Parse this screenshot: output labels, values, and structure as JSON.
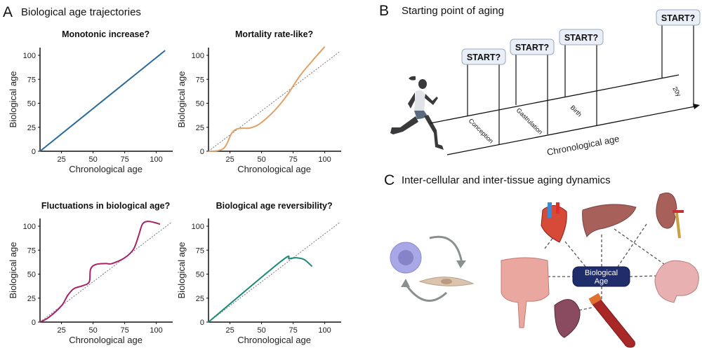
{
  "panels": {
    "a": {
      "letter": "A",
      "title": "Biological age trajectories"
    },
    "b": {
      "letter": "B",
      "title": "Starting point of aging",
      "start_label": "START?",
      "stages": [
        "Conception",
        "Gastrulation",
        "Birth",
        "20y"
      ],
      "axis_label": "Chronological age"
    },
    "c": {
      "letter": "C",
      "title": "Inter-cellular and inter-tissue aging dynamics",
      "center_line1": "Biological",
      "center_line2": "Age",
      "organs": [
        "heart",
        "liver",
        "kidney",
        "intestine",
        "brain",
        "spleen",
        "blood-tube"
      ],
      "center_color": "#1f2d6b"
    }
  },
  "chart_data": [
    {
      "type": "line",
      "title": "Monotonic increase?",
      "xlabel": "Chronological age",
      "ylabel": "Biological age",
      "xticks": [
        "25",
        "50",
        "75",
        "100"
      ],
      "yticks": [
        "0",
        "25",
        "50",
        "75",
        "100"
      ],
      "xlim": [
        8,
        113
      ],
      "ylim": [
        0,
        108
      ],
      "grid": false,
      "color": "#2a6a9a",
      "reference_line": false,
      "points": [
        [
          8,
          0
        ],
        [
          107,
          105
        ]
      ]
    },
    {
      "type": "line",
      "title": "Mortality rate-like?",
      "xlabel": "Chronological age",
      "ylabel": "Biological age",
      "xticks": [
        "25",
        "50",
        "75",
        "100"
      ],
      "yticks": [
        "0",
        "25",
        "50",
        "75",
        "100"
      ],
      "xlim": [
        8,
        113
      ],
      "ylim": [
        0,
        108
      ],
      "grid": false,
      "color": "#e0a068",
      "reference_line": true,
      "points": [
        [
          8,
          0
        ],
        [
          15,
          0.5
        ],
        [
          20,
          3
        ],
        [
          23,
          9
        ],
        [
          26,
          18
        ],
        [
          30,
          23
        ],
        [
          35,
          24
        ],
        [
          40,
          24
        ],
        [
          45,
          26
        ],
        [
          50,
          30
        ],
        [
          60,
          42
        ],
        [
          70,
          58
        ],
        [
          80,
          78
        ],
        [
          90,
          94
        ],
        [
          100,
          109
        ]
      ]
    },
    {
      "type": "line",
      "title": "Fluctuations in biological age?",
      "xlabel": "Chronological age",
      "ylabel": "Biological age",
      "xticks": [
        "25",
        "50",
        "75",
        "100"
      ],
      "yticks": [
        "0",
        "25",
        "50",
        "75",
        "100"
      ],
      "xlim": [
        8,
        113
      ],
      "ylim": [
        0,
        108
      ],
      "grid": false,
      "color": "#a8226a",
      "reference_line": true,
      "points": [
        [
          8,
          0
        ],
        [
          15,
          5
        ],
        [
          25,
          17
        ],
        [
          30,
          28
        ],
        [
          35,
          35
        ],
        [
          42,
          38
        ],
        [
          47,
          42
        ],
        [
          48,
          55
        ],
        [
          52,
          60
        ],
        [
          60,
          61
        ],
        [
          65,
          61
        ],
        [
          75,
          67
        ],
        [
          82,
          76
        ],
        [
          86,
          90
        ],
        [
          89,
          102
        ],
        [
          93,
          105
        ],
        [
          98,
          104
        ],
        [
          103,
          102
        ]
      ]
    },
    {
      "type": "line",
      "title": "Biological age reversibility?",
      "xlabel": "Chronological age",
      "ylabel": "Biological age",
      "xticks": [
        "25",
        "50",
        "75",
        "100"
      ],
      "yticks": [
        "0",
        "25",
        "50",
        "75",
        "100"
      ],
      "xlim": [
        8,
        113
      ],
      "ylim": [
        0,
        108
      ],
      "grid": false,
      "color": "#1e8a78",
      "reference_line": true,
      "points": [
        [
          8,
          0
        ],
        [
          65,
          63
        ],
        [
          72,
          66
        ],
        [
          78,
          67
        ],
        [
          84,
          65
        ],
        [
          90,
          58
        ]
      ]
    }
  ]
}
